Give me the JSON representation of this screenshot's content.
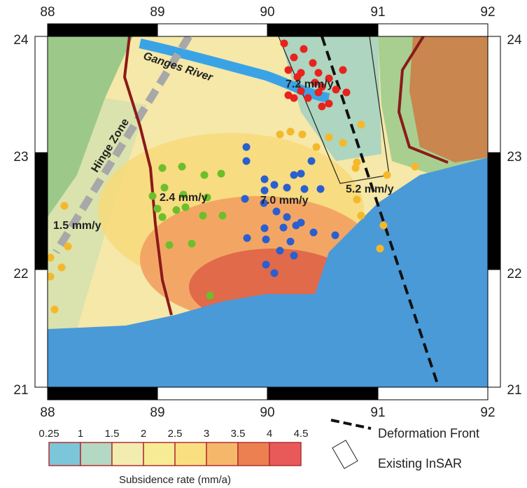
{
  "map": {
    "lon_labels": [
      "88",
      "89",
      "90",
      "91",
      "92"
    ],
    "lat_labels": [
      "24",
      "23",
      "22",
      "21"
    ],
    "annotations": {
      "river": "Ganges River",
      "hinge": "Hinge Zone",
      "rate_ne": "7.2 mm/y",
      "rate_w": "2.4 mm/y",
      "rate_c": "7.0 mm/y",
      "rate_e": "5.2 mm/y",
      "rate_sw": "1.5 mm/y"
    }
  },
  "legend": {
    "scale_labels": [
      "0.25",
      "1",
      "1.5",
      "2",
      "2.5",
      "3",
      "3.5",
      "4",
      "4.5"
    ],
    "scale_title": "Subsidence rate (mm/a)",
    "front": "Deformation Front",
    "insar": "Existing InSAR"
  }
}
